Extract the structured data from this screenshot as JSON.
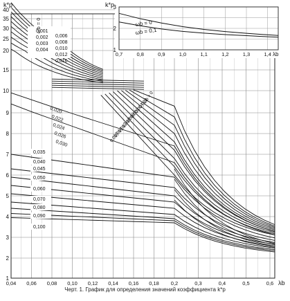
{
  "caption": "Черт. 1. График для определения значений коэффициента k*p",
  "main": {
    "ylabel": "k*p",
    "xlabel": "λb",
    "y_ticks": [
      "1",
      "2",
      "3",
      "4",
      "5",
      "6",
      "7",
      "8",
      "9",
      "10",
      "15",
      "20",
      "25",
      "30",
      "35",
      "40"
    ],
    "x_ticks": [
      "0,04",
      "0,06",
      "0,08",
      "0,10",
      "0,12",
      "0,14",
      "0,16",
      "0,18",
      "0,2",
      "0,3",
      "0,4",
      "0,5",
      "0,6"
    ],
    "legend_top": [
      "ωb = 0",
      "0,001",
      "0,002",
      "0,003",
      "0,004",
      "0,006",
      "0,008",
      "0,010",
      "0,012",
      "0,016"
    ],
    "legend_mid": [
      "0,020",
      "0,022",
      "0,024",
      "0,026",
      "0,030"
    ],
    "legend_low": [
      "0,035",
      "0,040",
      "0,045",
      "0,050",
      "0,060",
      "0,070",
      "0,080",
      "0,090",
      "0,100"
    ],
    "legend_diag": [
      "ωb = 0",
      "0,002",
      "0,004",
      "0,006",
      "0,008",
      "0,010",
      "0,012",
      "0,014",
      "0,016"
    ]
  },
  "inset": {
    "ylabel": "k*p",
    "xlabel": "λb",
    "y_ticks": [
      "1",
      "2",
      "3"
    ],
    "x_ticks": [
      "0,7",
      "0,8",
      "0,9",
      "1,0",
      "1,1",
      "1,2",
      "1,3",
      "1,4"
    ],
    "series_labels": [
      "ωb = 0",
      "ωb = 0,1"
    ]
  },
  "chart_data": [
    {
      "type": "line",
      "title": "",
      "xlabel": "λb",
      "ylabel": "k*p",
      "x_segment_1": [
        0.04,
        0.2
      ],
      "x_segment_2": [
        0.2,
        0.6
      ],
      "ylim": [
        1,
        45
      ],
      "series": [
        {
          "name": "0,020",
          "x": [
            0.04,
            0.2,
            0.62
          ],
          "y": [
            9.9,
            7.4,
            2.55
          ]
        },
        {
          "name": "0,030",
          "x": [
            0.04,
            0.2,
            0.62
          ],
          "y": [
            9.4,
            6.6,
            2.5
          ]
        },
        {
          "name": "0,035",
          "x": [
            0.04,
            0.2,
            0.62
          ],
          "y": [
            7.0,
            5.9,
            2.45
          ]
        },
        {
          "name": "0,040",
          "x": [
            0.04,
            0.2,
            0.62
          ],
          "y": [
            6.3,
            5.4,
            2.4
          ]
        },
        {
          "name": "0,045",
          "x": [
            0.04,
            0.2,
            0.62
          ],
          "y": [
            5.9,
            5.0,
            2.35
          ]
        },
        {
          "name": "0,050",
          "x": [
            0.04,
            0.2,
            0.62
          ],
          "y": [
            5.5,
            4.7,
            2.3
          ]
        },
        {
          "name": "0,060",
          "x": [
            0.04,
            0.2,
            0.62
          ],
          "y": [
            5.1,
            4.4,
            2.25
          ]
        },
        {
          "name": "0,070",
          "x": [
            0.04,
            0.2,
            0.62
          ],
          "y": [
            4.7,
            4.1,
            2.2
          ]
        },
        {
          "name": "0,080",
          "x": [
            0.04,
            0.2,
            0.62
          ],
          "y": [
            4.4,
            3.9,
            2.15
          ]
        },
        {
          "name": "0,090",
          "x": [
            0.04,
            0.2,
            0.62
          ],
          "y": [
            4.15,
            3.8,
            2.1
          ]
        },
        {
          "name": "0,100",
          "x": [
            0.04,
            0.2,
            0.62
          ],
          "y": [
            3.95,
            3.7,
            2.05
          ]
        }
      ],
      "upper_curves": [
        {
          "name": "ωb = 0",
          "x": [
            0.04,
            0.06,
            0.08,
            0.1,
            0.12
          ],
          "y": [
            44,
            30,
            21,
            15.5,
            13
          ]
        },
        {
          "name": "0,016",
          "x": [
            0.04,
            0.06,
            0.08,
            0.1,
            0.12
          ],
          "y": [
            20,
            15,
            12.5,
            11,
            10.5
          ]
        }
      ],
      "diagonal_curves": [
        {
          "name": "ωb = 0",
          "x": [
            0.16,
            0.2,
            0.3,
            0.5,
            0.62
          ],
          "y": [
            10,
            8.5,
            5.3,
            3.3,
            2.8
          ]
        },
        {
          "name": "0,016",
          "x": [
            0.14,
            0.2,
            0.3,
            0.5,
            0.62
          ],
          "y": [
            9.2,
            7.5,
            4.6,
            3.0,
            2.6
          ]
        }
      ]
    },
    {
      "type": "line",
      "title": "",
      "xlabel": "λb",
      "ylabel": "k*p",
      "xlim": [
        0.7,
        1.45
      ],
      "ylim": [
        1,
        3
      ],
      "series": [
        {
          "name": "ωb = 0",
          "x": [
            0.7,
            0.8,
            0.9,
            1.0,
            1.1,
            1.2,
            1.3,
            1.4,
            1.45
          ],
          "y": [
            2.7,
            2.45,
            2.25,
            2.08,
            1.95,
            1.85,
            1.77,
            1.7,
            1.67
          ]
        },
        {
          "name": "ωb = 0,1",
          "x": [
            0.7,
            0.8,
            0.9,
            1.0,
            1.1,
            1.2,
            1.3,
            1.4,
            1.45
          ],
          "y": [
            2.3,
            2.12,
            1.97,
            1.86,
            1.78,
            1.71,
            1.66,
            1.61,
            1.59
          ]
        }
      ]
    }
  ]
}
